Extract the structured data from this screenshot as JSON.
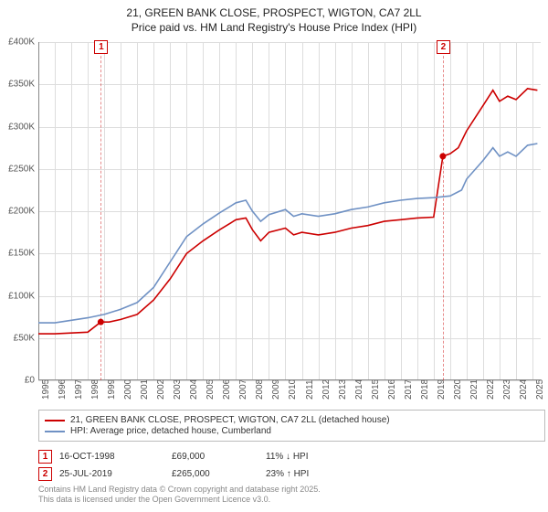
{
  "title": {
    "line1": "21, GREEN BANK CLOSE, PROSPECT, WIGTON, CA7 2LL",
    "line2": "Price paid vs. HM Land Registry's House Price Index (HPI)"
  },
  "chart": {
    "type": "line",
    "background_color": "#ffffff",
    "grid_color": "#dddddd",
    "axis_color": "#888888",
    "ylim": [
      0,
      400000
    ],
    "ytick_step": 50000,
    "ytick_labels": [
      "£0",
      "£50K",
      "£100K",
      "£150K",
      "£200K",
      "£250K",
      "£300K",
      "£350K",
      "£400K"
    ],
    "xlim": [
      1995,
      2025.5
    ],
    "xtick_step": 1,
    "xtick_labels": [
      "1995",
      "1996",
      "1997",
      "1998",
      "1999",
      "2000",
      "2001",
      "2002",
      "2003",
      "2004",
      "2005",
      "2006",
      "2007",
      "2008",
      "2009",
      "2010",
      "2011",
      "2012",
      "2013",
      "2014",
      "2015",
      "2016",
      "2017",
      "2018",
      "2019",
      "2020",
      "2021",
      "2022",
      "2023",
      "2024",
      "2025"
    ],
    "label_fontsize": 10,
    "title_fontsize": 12,
    "series": [
      {
        "name": "price_paid",
        "color": "#cc0000",
        "width": 1.6,
        "points": [
          [
            1995,
            55000
          ],
          [
            1996,
            55000
          ],
          [
            1997,
            56000
          ],
          [
            1998,
            57000
          ],
          [
            1998.79,
            69000
          ],
          [
            1999.3,
            69000
          ],
          [
            2000,
            72000
          ],
          [
            2001,
            78000
          ],
          [
            2002,
            95000
          ],
          [
            2003,
            120000
          ],
          [
            2004,
            150000
          ],
          [
            2005,
            165000
          ],
          [
            2006,
            178000
          ],
          [
            2007,
            190000
          ],
          [
            2007.6,
            192000
          ],
          [
            2008,
            178000
          ],
          [
            2008.5,
            165000
          ],
          [
            2009,
            175000
          ],
          [
            2010,
            180000
          ],
          [
            2010.5,
            172000
          ],
          [
            2011,
            175000
          ],
          [
            2012,
            172000
          ],
          [
            2013,
            175000
          ],
          [
            2014,
            180000
          ],
          [
            2015,
            183000
          ],
          [
            2016,
            188000
          ],
          [
            2017,
            190000
          ],
          [
            2018,
            192000
          ],
          [
            2019,
            193000
          ],
          [
            2019.56,
            265000
          ],
          [
            2020,
            268000
          ],
          [
            2020.5,
            275000
          ],
          [
            2021,
            295000
          ],
          [
            2022,
            325000
          ],
          [
            2022.6,
            343000
          ],
          [
            2023,
            330000
          ],
          [
            2023.5,
            336000
          ],
          [
            2024,
            332000
          ],
          [
            2024.7,
            345000
          ],
          [
            2025.3,
            343000
          ]
        ]
      },
      {
        "name": "hpi",
        "color": "#6f91c4",
        "width": 1.6,
        "points": [
          [
            1995,
            68000
          ],
          [
            1996,
            68000
          ],
          [
            1997,
            71000
          ],
          [
            1998,
            74000
          ],
          [
            1999,
            78000
          ],
          [
            2000,
            84000
          ],
          [
            2001,
            92000
          ],
          [
            2002,
            110000
          ],
          [
            2003,
            140000
          ],
          [
            2004,
            170000
          ],
          [
            2005,
            185000
          ],
          [
            2006,
            198000
          ],
          [
            2007,
            210000
          ],
          [
            2007.6,
            213000
          ],
          [
            2008,
            200000
          ],
          [
            2008.5,
            188000
          ],
          [
            2009,
            196000
          ],
          [
            2010,
            202000
          ],
          [
            2010.5,
            194000
          ],
          [
            2011,
            197000
          ],
          [
            2012,
            194000
          ],
          [
            2013,
            197000
          ],
          [
            2014,
            202000
          ],
          [
            2015,
            205000
          ],
          [
            2016,
            210000
          ],
          [
            2017,
            213000
          ],
          [
            2018,
            215000
          ],
          [
            2019,
            216000
          ],
          [
            2020,
            218000
          ],
          [
            2020.7,
            225000
          ],
          [
            2021,
            238000
          ],
          [
            2022,
            260000
          ],
          [
            2022.6,
            275000
          ],
          [
            2023,
            265000
          ],
          [
            2023.5,
            270000
          ],
          [
            2024,
            265000
          ],
          [
            2024.7,
            278000
          ],
          [
            2025.3,
            280000
          ]
        ]
      }
    ],
    "sale_markers": [
      {
        "n": "1",
        "x": 1998.79,
        "y": 69000,
        "color": "#cc0000"
      },
      {
        "n": "2",
        "x": 2019.56,
        "y": 265000,
        "color": "#cc0000"
      }
    ]
  },
  "legend": {
    "entries": [
      {
        "color": "#cc0000",
        "label": "21, GREEN BANK CLOSE, PROSPECT, WIGTON, CA7 2LL (detached house)"
      },
      {
        "color": "#6f91c4",
        "label": "HPI: Average price, detached house, Cumberland"
      }
    ]
  },
  "sales_table": {
    "rows": [
      {
        "n": "1",
        "marker_color": "#cc0000",
        "date": "16-OCT-1998",
        "price": "£69,000",
        "pct": "11% ↓ HPI"
      },
      {
        "n": "2",
        "marker_color": "#cc0000",
        "date": "25-JUL-2019",
        "price": "£265,000",
        "pct": "23% ↑ HPI"
      }
    ]
  },
  "footnote": {
    "line1": "Contains HM Land Registry data © Crown copyright and database right 2025.",
    "line2": "This data is licensed under the Open Government Licence v3.0."
  }
}
